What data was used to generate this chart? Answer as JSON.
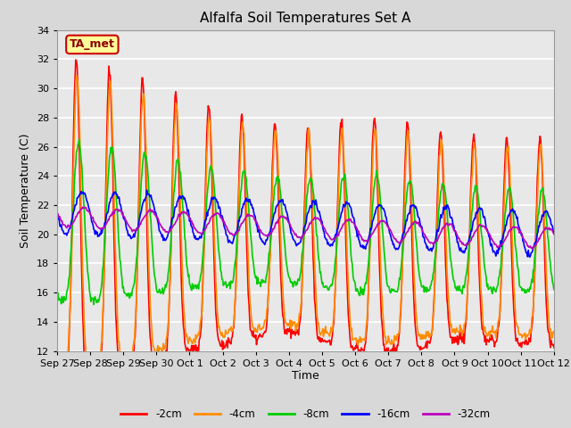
{
  "title": "Alfalfa Soil Temperatures Set A",
  "xlabel": "Time",
  "ylabel": "Soil Temperature (C)",
  "ylim": [
    12,
    34
  ],
  "yticks": [
    12,
    14,
    16,
    18,
    20,
    22,
    24,
    26,
    28,
    30,
    32,
    34
  ],
  "colors": {
    "-2cm": "#FF0000",
    "-4cm": "#FF8C00",
    "-8cm": "#00CC00",
    "-16cm": "#0000FF",
    "-32cm": "#BB00BB"
  },
  "legend_labels": [
    "-2cm",
    "-4cm",
    "-8cm",
    "-16cm",
    "-32cm"
  ],
  "xtick_labels": [
    "Sep 27",
    "Sep 28",
    "Sep 29",
    "Sep 30",
    "Oct 1",
    "Oct 2",
    "Oct 3",
    "Oct 4",
    "Oct 5",
    "Oct 6",
    "Oct 7",
    "Oct 8",
    "Oct 9",
    "Oct 10",
    "Oct 11",
    "Oct 12"
  ],
  "annotation_text": "TA_met",
  "annotation_bg": "#FFFF99",
  "annotation_border": "#CC0000",
  "bg_color": "#D8D8D8",
  "plot_bg": "#E8E8E8",
  "linewidth": 1.2,
  "figwidth": 6.4,
  "figheight": 4.8,
  "dpi": 100
}
